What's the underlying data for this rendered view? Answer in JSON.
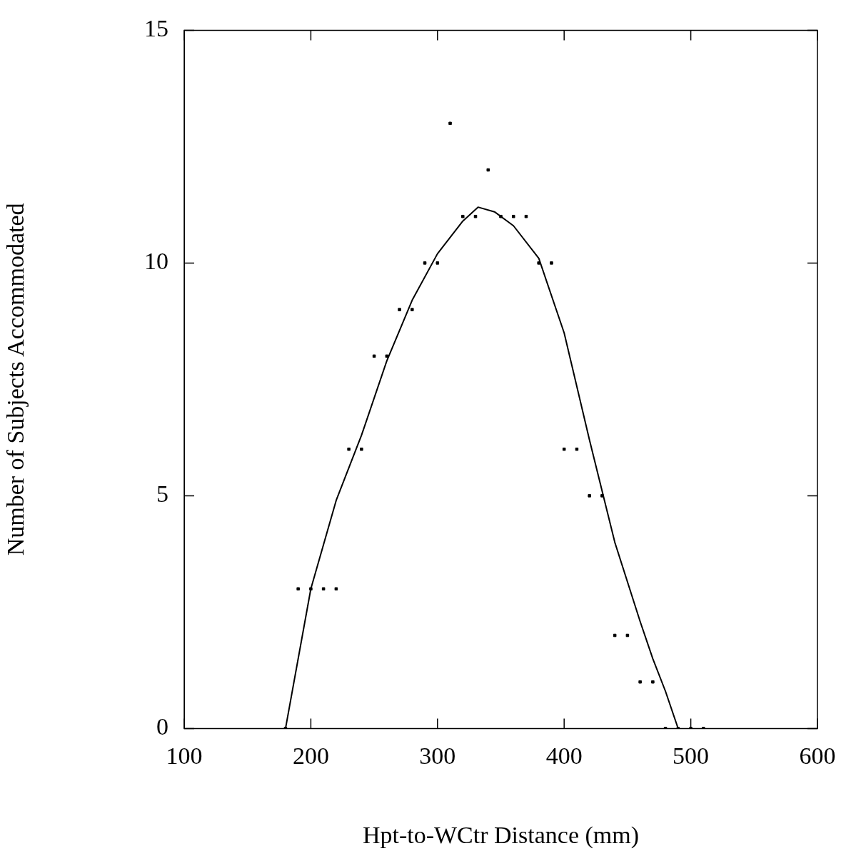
{
  "chart_data": {
    "type": "scatter",
    "xlabel": "Hpt-to-WCtr Distance (mm)",
    "ylabel": "Number of Subjects Accommodated",
    "xlim": [
      100,
      600
    ],
    "ylim": [
      0,
      15
    ],
    "xticks": [
      100,
      200,
      300,
      400,
      500,
      600
    ],
    "yticks": [
      0,
      5,
      10,
      15
    ],
    "grid": false,
    "legend": false,
    "marker": "square",
    "series": [
      {
        "type": "scatter",
        "color": "#000000",
        "x": [
          180,
          190,
          200,
          210,
          220,
          230,
          240,
          250,
          260,
          270,
          280,
          290,
          300,
          310,
          320,
          330,
          340,
          350,
          360,
          370,
          380,
          390,
          400,
          410,
          420,
          430,
          440,
          450,
          460,
          470,
          480,
          490,
          500,
          510
        ],
        "values": [
          0,
          3,
          3,
          3,
          3,
          6,
          6,
          8,
          8,
          9,
          9,
          10,
          10,
          13,
          11,
          11,
          12,
          11,
          11,
          11,
          10,
          10,
          6,
          6,
          5,
          5,
          2,
          2,
          1,
          1,
          0,
          0,
          0,
          0
        ]
      },
      {
        "type": "line",
        "color": "#000000",
        "marker": "none",
        "x": [
          180,
          200,
          220,
          240,
          260,
          280,
          300,
          320,
          332,
          345,
          360,
          380,
          400,
          420,
          440,
          460,
          470,
          480,
          490
        ],
        "values": [
          0,
          3,
          4.9,
          6.3,
          7.9,
          9.2,
          10.2,
          10.9,
          11.2,
          11.1,
          10.8,
          10.1,
          8.5,
          6.2,
          4,
          2.3,
          1.5,
          0.8,
          0
        ]
      }
    ]
  }
}
